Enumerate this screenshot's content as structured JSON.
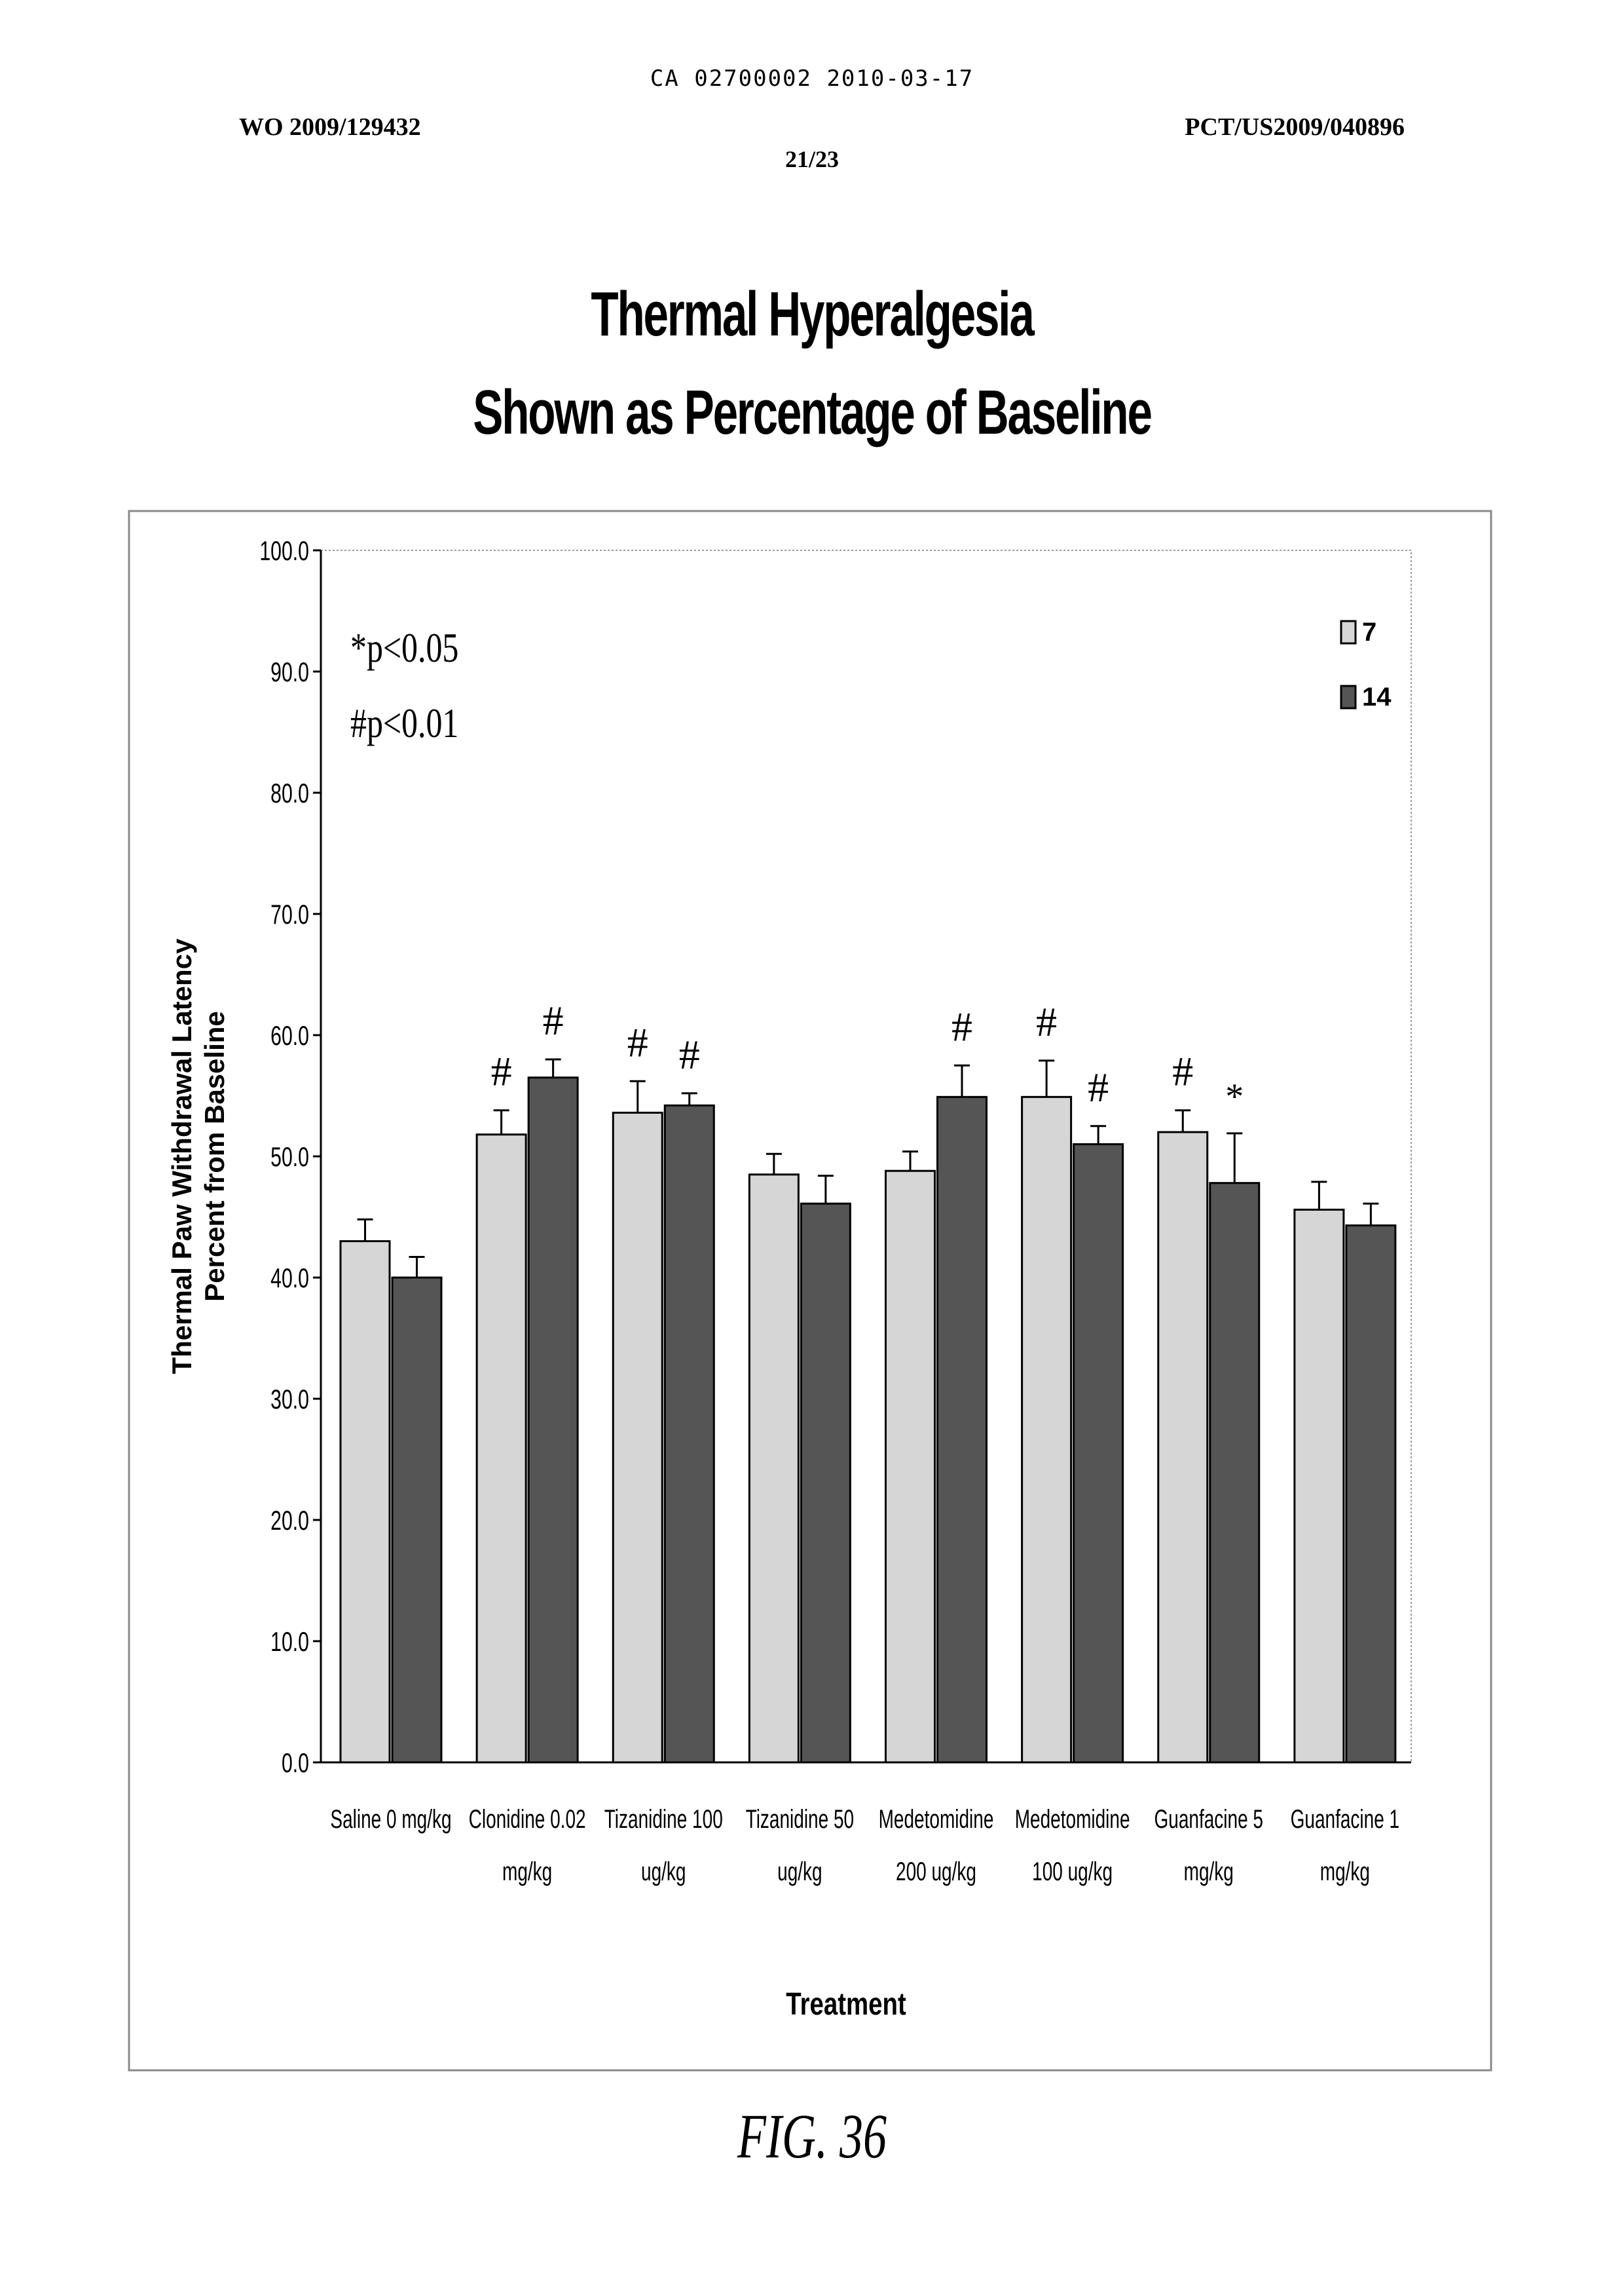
{
  "header": {
    "filing": "CA 02700002 2010-03-17",
    "publication": "WO 2009/129432",
    "application": "PCT/US2009/040896",
    "sheet": "21/23"
  },
  "figure": {
    "title_line1": "Thermal Hyperalgesia",
    "title_line2": "Shown as Percentage of Baseline",
    "caption": "FIG. 36"
  },
  "colors": {
    "series_7": "#d6d6d6",
    "series_14": "#555555",
    "axis": "#000000"
  },
  "chart_data": {
    "type": "bar",
    "title": "Thermal Hyperalgesia Shown as Percentage of Baseline",
    "xlabel": "Treatment",
    "ylabel_line1": "Thermal Paw Withdrawal Latency",
    "ylabel_line2": "Percent from Baseline",
    "ylim": [
      0,
      100
    ],
    "yticks": [
      "0.0",
      "10.0",
      "20.0",
      "30.0",
      "40.0",
      "50.0",
      "60.0",
      "70.0",
      "80.0",
      "90.0",
      "100.0"
    ],
    "grid": false,
    "legend_position": "top-right",
    "annotations": [
      "*p<0.05",
      "#p<0.01"
    ],
    "categories": [
      [
        "Saline 0 mg/kg"
      ],
      [
        "Clonidine 0.02",
        "mg/kg"
      ],
      [
        "Tizanidine 100",
        "ug/kg"
      ],
      [
        "Tizanidine 50",
        "ug/kg"
      ],
      [
        "Medetomidine",
        "200 ug/kg"
      ],
      [
        "Medetomidine",
        "100 ug/kg"
      ],
      [
        "Guanfacine 5",
        "mg/kg"
      ],
      [
        "Guanfacine 1",
        "mg/kg"
      ]
    ],
    "series": [
      {
        "name": "7",
        "values": [
          43.0,
          51.8,
          53.6,
          48.5,
          48.8,
          54.9,
          52.0,
          45.6
        ],
        "errors": [
          1.8,
          2.0,
          2.6,
          1.7,
          1.6,
          3.0,
          1.8,
          2.3
        ],
        "significance": [
          "",
          "#",
          "#",
          "",
          "",
          "#",
          "#",
          ""
        ]
      },
      {
        "name": "14",
        "values": [
          40.0,
          56.5,
          54.2,
          46.1,
          54.9,
          51.0,
          47.8,
          44.3
        ],
        "errors": [
          1.7,
          1.5,
          1.0,
          2.3,
          2.6,
          1.5,
          4.1,
          1.8
        ],
        "significance": [
          "",
          "#",
          "#",
          "",
          "#",
          "#",
          "*",
          ""
        ]
      }
    ]
  }
}
